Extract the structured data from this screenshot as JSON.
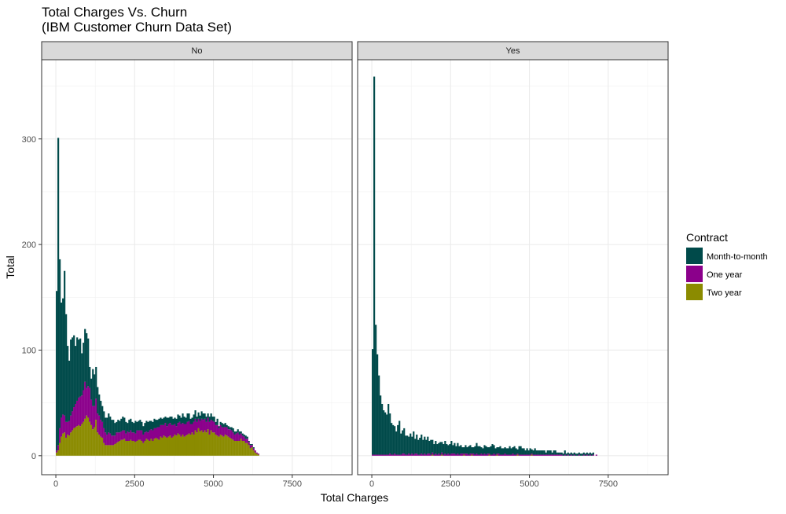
{
  "chart_data": {
    "type": "bar",
    "title": "Total Charges Vs. Churn",
    "subtitle": "(IBM Customer Churn Data Set)",
    "xlabel": "Total Charges",
    "ylabel": "Total",
    "xlim": [
      -450,
      9400
    ],
    "ylim": [
      -18,
      375
    ],
    "xticks": [
      0,
      2500,
      5000,
      7500
    ],
    "yticks": [
      0,
      100,
      200,
      300
    ],
    "grid": true,
    "stacked": true,
    "bin_width": 50,
    "bin_start": 0,
    "legend": {
      "title": "Contract",
      "position": "right",
      "entries": [
        {
          "label": "Month-to-month",
          "color": "#004a4a"
        },
        {
          "label": "One year",
          "color": "#8b008b"
        },
        {
          "label": "Two year",
          "color": "#8b8b00"
        }
      ]
    },
    "series_colors": {
      "Two year": "#8b8b00",
      "One year": "#8b008b",
      "Month-to-month": "#004a4a"
    },
    "panels": [
      {
        "label": "No",
        "Two year": [
          3,
          5,
          12,
          18,
          21,
          22,
          17,
          20,
          19,
          22,
          24,
          26,
          27,
          28,
          29,
          28,
          30,
          32,
          35,
          38,
          36,
          32,
          29,
          25,
          27,
          34,
          22,
          20,
          18,
          17,
          12,
          10,
          10,
          10,
          10,
          10,
          10,
          11,
          12,
          13,
          14,
          15,
          15,
          16,
          14,
          14,
          14,
          15,
          14,
          14,
          13,
          14,
          15,
          15,
          14,
          12,
          14,
          16,
          15,
          14,
          16,
          14,
          16,
          17,
          16,
          15,
          18,
          17,
          19,
          18,
          17,
          18,
          19,
          17,
          18,
          20,
          19,
          21,
          20,
          18,
          20,
          18,
          19,
          20,
          21,
          20,
          22,
          20,
          24,
          22,
          26,
          23,
          24,
          22,
          24,
          22,
          25,
          20,
          24,
          22,
          22,
          20,
          19,
          18,
          20,
          19,
          18,
          20,
          19,
          18,
          17,
          16,
          15,
          14,
          14,
          14,
          14,
          16,
          14,
          14,
          12,
          12,
          10,
          7,
          8,
          5,
          3,
          2,
          1
        ],
        "One year": [
          2,
          5,
          14,
          18,
          18,
          16,
          15,
          12,
          14,
          16,
          18,
          20,
          22,
          24,
          26,
          28,
          27,
          30,
          35,
          26,
          30,
          32,
          24,
          22,
          20,
          20,
          18,
          18,
          16,
          15,
          14,
          12,
          10,
          12,
          11,
          9,
          9,
          8,
          10,
          9,
          8,
          8,
          9,
          8,
          7,
          9,
          8,
          9,
          8,
          8,
          8,
          10,
          9,
          9,
          10,
          8,
          8,
          7,
          7,
          10,
          9,
          10,
          10,
          9,
          11,
          12,
          11,
          12,
          10,
          13,
          11,
          12,
          12,
          12,
          11,
          10,
          9,
          10,
          12,
          12,
          11,
          12,
          11,
          12,
          12,
          10,
          8,
          12,
          11,
          10,
          9,
          10,
          11,
          12,
          11,
          10,
          11,
          12,
          10,
          11,
          10,
          9,
          10,
          8,
          9,
          8,
          9,
          7,
          8,
          7,
          8,
          8,
          7,
          6,
          7,
          8,
          6,
          5,
          5,
          4,
          4,
          4,
          3,
          3,
          2,
          2,
          2,
          1,
          1
        ],
        "Month-to-month": [
          151,
          291,
          160,
          109,
          110,
          137,
          102,
          72,
          57,
          72,
          70,
          68,
          55,
          60,
          55,
          55,
          40,
          45,
          50,
          52,
          45,
          20,
          20,
          35,
          30,
          30,
          25,
          20,
          18,
          15,
          16,
          14,
          16,
          18,
          16,
          15,
          15,
          12,
          10,
          12,
          11,
          12,
          13,
          12,
          11,
          8,
          12,
          11,
          10,
          9,
          12,
          8,
          9,
          10,
          8,
          8,
          9,
          10,
          10,
          9,
          8,
          8,
          9,
          8,
          7,
          8,
          7,
          6,
          7,
          6,
          8,
          6,
          6,
          8,
          6,
          6,
          7,
          8,
          6,
          6,
          9,
          7,
          6,
          8,
          7,
          5,
          6,
          7,
          8,
          5,
          6,
          5,
          7,
          6,
          5,
          5,
          4,
          5,
          6,
          4,
          5,
          3,
          6,
          2,
          3,
          4,
          3,
          4,
          2,
          3,
          2,
          3,
          4,
          3,
          2,
          3,
          3,
          2,
          2,
          2,
          3,
          2,
          1,
          1,
          1,
          1,
          0,
          0,
          0
        ]
      },
      {
        "label": "Yes",
        "Two year": [
          0,
          0,
          0,
          0,
          0,
          0,
          0,
          0,
          0,
          0,
          0,
          0,
          0,
          0,
          0,
          0,
          0,
          0,
          0,
          0,
          0,
          0,
          0,
          0,
          0,
          0,
          0,
          0,
          0,
          0,
          0,
          0,
          0,
          0,
          0,
          0,
          0,
          0,
          1,
          0,
          0,
          0,
          0,
          0,
          1,
          0,
          0,
          0,
          0,
          0,
          0,
          0,
          0,
          0,
          0,
          0,
          0,
          0,
          1,
          0,
          0,
          0,
          0,
          1,
          0,
          0,
          0,
          0,
          0,
          0,
          0,
          0,
          0,
          0,
          1,
          0,
          0,
          0,
          0,
          1,
          0,
          0,
          0,
          0,
          0,
          0,
          0,
          0,
          0,
          0,
          0,
          0,
          1,
          0,
          0,
          0,
          0,
          0,
          0,
          0,
          0,
          1,
          0,
          0,
          0,
          0,
          0,
          0,
          0,
          0,
          0,
          0,
          0,
          0,
          0,
          0,
          0,
          0,
          0,
          0,
          0,
          0,
          0,
          0,
          0,
          0,
          0,
          0,
          0,
          0,
          0,
          0,
          0,
          0,
          0,
          0,
          0,
          0,
          0,
          0,
          0,
          0,
          0,
          0,
          0,
          0,
          0,
          0,
          0,
          0,
          0,
          0,
          0,
          0,
          0,
          0,
          0,
          0,
          0,
          0,
          0,
          0,
          0,
          0,
          0,
          0,
          0,
          0,
          0,
          0,
          0,
          0,
          0,
          0,
          0,
          0
        ],
        "One year": [
          1,
          1,
          1,
          1,
          1,
          1,
          1,
          1,
          1,
          1,
          1,
          2,
          1,
          1,
          2,
          1,
          1,
          1,
          1,
          2,
          2,
          1,
          1,
          2,
          1,
          2,
          1,
          2,
          2,
          1,
          1,
          2,
          1,
          2,
          1,
          2,
          2,
          1,
          2,
          1,
          2,
          1,
          2,
          1,
          2,
          1,
          2,
          1,
          2,
          1,
          2,
          2,
          2,
          1,
          2,
          1,
          2,
          2,
          1,
          2,
          2,
          1,
          2,
          1,
          2,
          1,
          2,
          1,
          1,
          2,
          1,
          2,
          1,
          2,
          1,
          1,
          1,
          2,
          1,
          1,
          2,
          1,
          1,
          1,
          2,
          1,
          1,
          1,
          1,
          2,
          1,
          1,
          1,
          1,
          1,
          1,
          1,
          1,
          1,
          1,
          1,
          1,
          1,
          1,
          1,
          1,
          1,
          1,
          1,
          1,
          1,
          1,
          1,
          1,
          1,
          1,
          1,
          1,
          1,
          1,
          1,
          0,
          1,
          0,
          1,
          0,
          1,
          0,
          1,
          0,
          0,
          1,
          0,
          0,
          1,
          0,
          1,
          0,
          1,
          0,
          1,
          0,
          1,
          0,
          0,
          0,
          0,
          0,
          0,
          0,
          0,
          0,
          0,
          0,
          0,
          0,
          0,
          0,
          0,
          0,
          0,
          0,
          0,
          0,
          0,
          0,
          0,
          0,
          0,
          0,
          0,
          0,
          0,
          0,
          0
        ],
        "Month-to-month": [
          100,
          358,
          123,
          95,
          75,
          56,
          48,
          42,
          40,
          38,
          48,
          38,
          30,
          28,
          26,
          22,
          28,
          32,
          20,
          22,
          24,
          18,
          18,
          16,
          20,
          16,
          22,
          14,
          18,
          14,
          16,
          18,
          14,
          16,
          14,
          16,
          12,
          14,
          12,
          10,
          12,
          10,
          10,
          12,
          10,
          10,
          12,
          10,
          8,
          10,
          12,
          8,
          10,
          8,
          10,
          8,
          8,
          6,
          6,
          8,
          6,
          8,
          8,
          6,
          6,
          8,
          10,
          8,
          8,
          6,
          6,
          8,
          8,
          6,
          6,
          8,
          10,
          8,
          6,
          6,
          6,
          8,
          6,
          6,
          6,
          6,
          6,
          8,
          6,
          6,
          8,
          6,
          4,
          8,
          8,
          6,
          6,
          4,
          6,
          4,
          6,
          4,
          4,
          6,
          4,
          4,
          4,
          4,
          4,
          4,
          2,
          4,
          4,
          4,
          2,
          4,
          4,
          2,
          2,
          2,
          2,
          2,
          4,
          2,
          2,
          2,
          2,
          2,
          2,
          2,
          2,
          2,
          2,
          2,
          2,
          2,
          2,
          2,
          2,
          2,
          2,
          0,
          0,
          0,
          0,
          0,
          0,
          0,
          0,
          0,
          0,
          0,
          0,
          0,
          0,
          0,
          0,
          0,
          0,
          0,
          0,
          0,
          0,
          0,
          0,
          0,
          0,
          0,
          0,
          0,
          0,
          0,
          0,
          0,
          0
        ]
      }
    ]
  }
}
